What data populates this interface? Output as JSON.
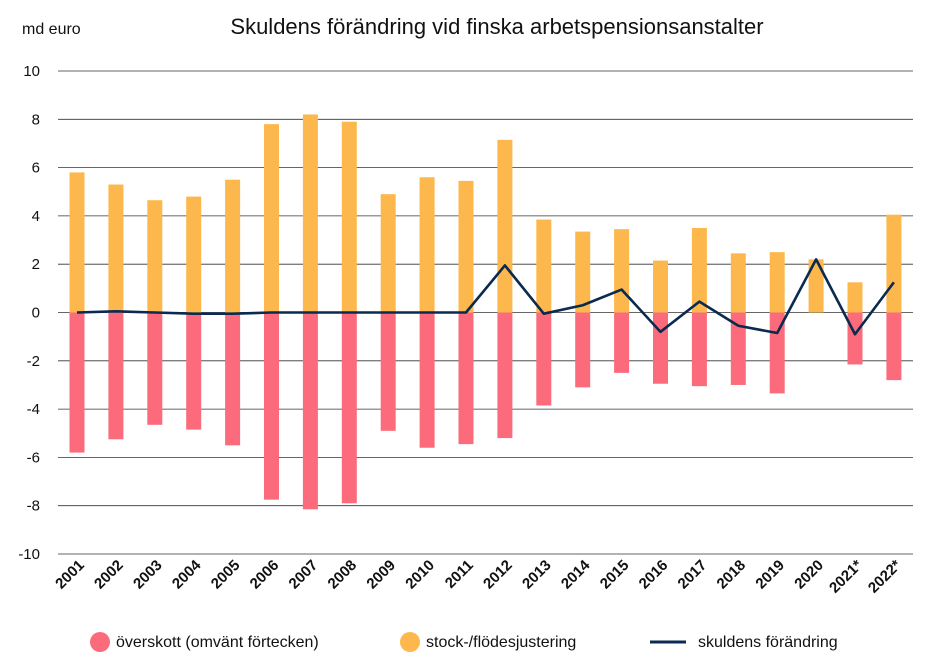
{
  "chart_data": {
    "type": "bar",
    "title": "Skuldens förändring vid finska arbetspensionsanstalter",
    "unit_label": "md euro",
    "ylim": [
      -10,
      10
    ],
    "yticks": [
      10,
      8,
      6,
      4,
      2,
      0,
      -2,
      -4,
      -6,
      -8,
      -10
    ],
    "grid": true,
    "legend_position": "bottom",
    "categories": [
      "2001",
      "2002",
      "2003",
      "2004",
      "2005",
      "2006",
      "2007",
      "2008",
      "2009",
      "2010",
      "2011",
      "2012",
      "2013",
      "2014",
      "2015",
      "2016",
      "2017",
      "2018",
      "2019",
      "2020",
      "2021*",
      "2022*"
    ],
    "series": [
      {
        "name": "överskott (omvänt förtecken)",
        "kind": "bar",
        "color": "#fb6b7b",
        "values": [
          -5.8,
          -5.25,
          -4.65,
          -4.85,
          -5.5,
          -7.75,
          -8.15,
          -7.9,
          -4.9,
          -5.6,
          -5.45,
          -5.2,
          -3.85,
          -3.1,
          -2.5,
          -2.95,
          -3.05,
          -3.0,
          -3.35,
          0.0,
          -2.15,
          -2.8
        ]
      },
      {
        "name": "stock-/flödesjustering",
        "kind": "bar",
        "color": "#fdb84d",
        "values": [
          5.8,
          5.3,
          4.65,
          4.8,
          5.5,
          7.8,
          8.2,
          7.9,
          4.9,
          5.6,
          5.45,
          7.15,
          3.85,
          3.35,
          3.45,
          2.15,
          3.5,
          2.45,
          2.5,
          2.2,
          1.25,
          4.05
        ]
      },
      {
        "name": "skuldens förändring",
        "kind": "line",
        "color": "#0b2a4f",
        "values": [
          0.0,
          0.05,
          0.0,
          -0.05,
          -0.05,
          0.0,
          0.0,
          0.0,
          0.0,
          0.0,
          0.0,
          1.95,
          -0.05,
          0.3,
          0.95,
          -0.8,
          0.45,
          -0.55,
          -0.85,
          2.2,
          -0.9,
          1.25
        ]
      }
    ]
  }
}
